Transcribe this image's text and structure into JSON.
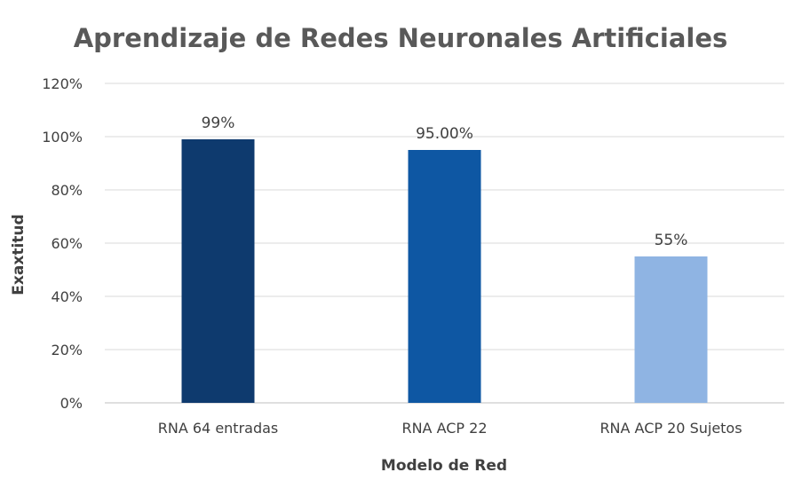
{
  "chart_data": {
    "type": "bar",
    "title": "Aprendizaje de Redes Neuronales Artificiales",
    "xlabel": "Modelo de Red",
    "ylabel": "Exaxtitud",
    "categories": [
      "RNA 64 entradas",
      "RNA ACP 22",
      "RNA ACP 20 Sujetos"
    ],
    "values": [
      0.99,
      0.95,
      0.55
    ],
    "data_labels": [
      "99%",
      "95.00%",
      "55%"
    ],
    "bar_colors": [
      "#0e3a6e",
      "#0e57a3",
      "#8fb4e3"
    ],
    "ylim": [
      0,
      1.2
    ],
    "yticks": [
      0,
      0.2,
      0.4,
      0.6,
      0.8,
      1.0,
      1.2
    ],
    "ytick_labels": [
      "0%",
      "20%",
      "40%",
      "60%",
      "80%",
      "100%",
      "120%"
    ],
    "grid": true,
    "legend": "none"
  }
}
